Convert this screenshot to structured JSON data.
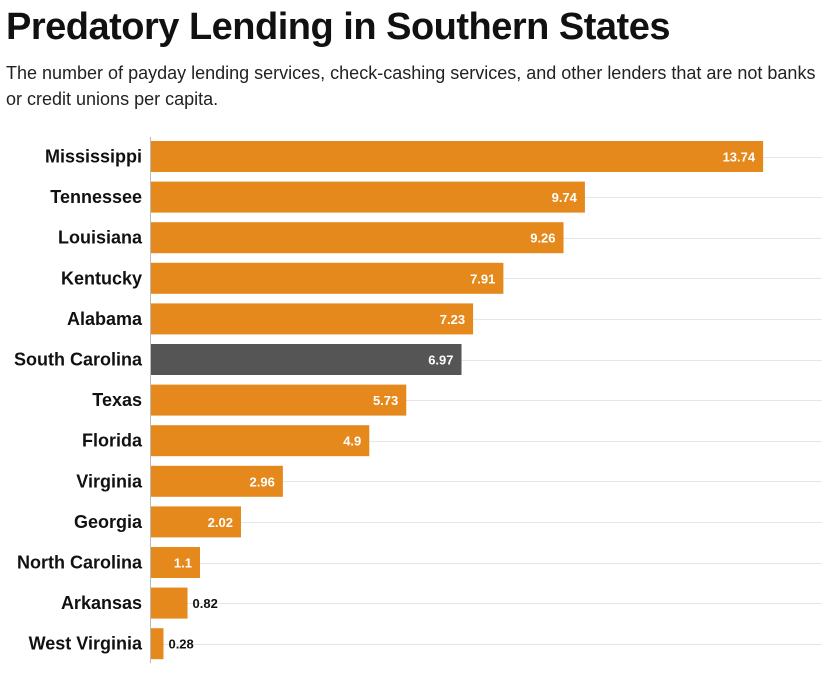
{
  "chart_data": {
    "type": "bar",
    "orientation": "horizontal",
    "title": "Predatory Lending in Southern States",
    "subtitle": "The number of payday lending services, check-cashing services, and other lenders that are not banks or credit unions per capita.",
    "categories": [
      "Mississippi",
      "Tennessee",
      "Louisiana",
      "Kentucky",
      "Alabama",
      "South Carolina",
      "Texas",
      "Florida",
      "Virginia",
      "Georgia",
      "North Carolina",
      "Arkansas",
      "West Virginia"
    ],
    "values": [
      13.74,
      9.74,
      9.26,
      7.91,
      7.23,
      6.97,
      5.73,
      4.9,
      2.96,
      2.02,
      1.1,
      0.82,
      0.28
    ],
    "value_labels": [
      "13.74",
      "9.74",
      "9.26",
      "7.91",
      "7.23",
      "6.97",
      "5.73",
      "4.9",
      "2.96",
      "2.02",
      "1.1",
      "0.82",
      "0.28"
    ],
    "highlight": "South Carolina",
    "xlim": [
      0,
      15
    ],
    "grid": true,
    "colors": {
      "bar": "#e5891c",
      "highlight": "#555555",
      "grid": "#e6e6e6",
      "axis": "#bbbbbb"
    }
  }
}
